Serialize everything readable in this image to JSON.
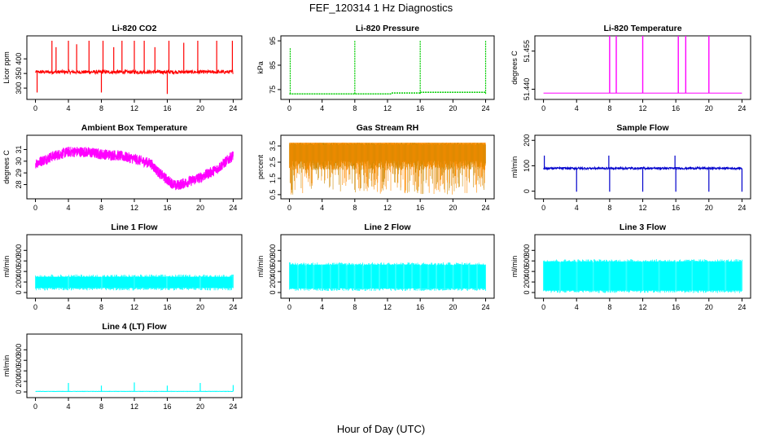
{
  "figure": {
    "title": "FEF_120314  1 Hz Diagnostics",
    "xlabel": "Hour of Day (UTC)"
  },
  "chart_data": [
    {
      "id": "co2",
      "type": "line",
      "title": "Li-820 CO2",
      "ylabel": "Licor ppm",
      "color": "#ff0000",
      "xlim": [
        0,
        24
      ],
      "xticks": [
        0,
        4,
        8,
        12,
        16,
        20,
        24
      ],
      "ylim": [
        270,
        470
      ],
      "yticks": [
        300,
        350,
        400
      ],
      "pattern": "baseline_spikes",
      "baseline": 355,
      "noise": 6,
      "spikes": [
        [
          0.2,
          285
        ],
        [
          2.0,
          462
        ],
        [
          2.5,
          440
        ],
        [
          4.0,
          462
        ],
        [
          5.0,
          450
        ],
        [
          6.5,
          462
        ],
        [
          8.0,
          285
        ],
        [
          8.2,
          462
        ],
        [
          9.5,
          440
        ],
        [
          10.5,
          462
        ],
        [
          12.0,
          462
        ],
        [
          13.2,
          462
        ],
        [
          14.5,
          440
        ],
        [
          16.0,
          280
        ],
        [
          16.2,
          462
        ],
        [
          18.0,
          455
        ],
        [
          19.7,
          462
        ],
        [
          22.0,
          462
        ],
        [
          23.9,
          462
        ]
      ]
    },
    {
      "id": "pressure",
      "type": "line",
      "title": "Li-820 Pressure",
      "ylabel": "kPa",
      "color": "#00cc00",
      "xlim": [
        0,
        24
      ],
      "xticks": [
        0,
        4,
        8,
        12,
        16,
        20,
        24
      ],
      "ylim": [
        72,
        96
      ],
      "yticks": [
        75,
        85,
        95
      ],
      "pattern": "step_spikes",
      "segments": [
        [
          0,
          12.5,
          73.2
        ],
        [
          12.5,
          16,
          73.6
        ],
        [
          16,
          24,
          73.9
        ]
      ],
      "spikes": [
        [
          0.1,
          92
        ],
        [
          8.0,
          95
        ],
        [
          16.0,
          95
        ],
        [
          24.0,
          95
        ]
      ]
    },
    {
      "id": "temperature",
      "type": "line",
      "title": "Li-820 Temperature",
      "ylabel": "degrees C",
      "color": "#ff00ff",
      "xlim": [
        0,
        24
      ],
      "xticks": [
        0,
        4,
        8,
        12,
        16,
        20,
        24
      ],
      "ylim": [
        51.437,
        51.46
      ],
      "yticks": [
        51.44,
        51.455
      ],
      "ytick_labels": [
        "51.440",
        "51.455"
      ],
      "pattern": "flat_spikes",
      "baseline": 51.4385,
      "spikes": [
        [
          8.0,
          51.46
        ],
        [
          8.8,
          51.46
        ],
        [
          12.0,
          51.46
        ],
        [
          16.3,
          51.46
        ],
        [
          17.2,
          51.46
        ],
        [
          20.0,
          51.46
        ]
      ]
    },
    {
      "id": "ambient",
      "type": "line",
      "title": "Ambient Box Temperature",
      "ylabel": "degrees C",
      "color": "#ff00ff",
      "xlim": [
        0,
        24
      ],
      "xticks": [
        0,
        4,
        8,
        12,
        16,
        20,
        24
      ],
      "ylim": [
        27,
        32
      ],
      "yticks": [
        28,
        29,
        30,
        31
      ],
      "pattern": "smooth_band",
      "band": 0.7,
      "x": [
        0,
        2,
        4,
        6,
        8,
        10,
        12,
        14,
        15,
        16,
        17,
        18,
        20,
        22,
        23,
        24
      ],
      "y": [
        29.8,
        30.4,
        30.8,
        30.8,
        30.6,
        30.5,
        30.2,
        29.8,
        29.0,
        28.4,
        27.9,
        28.1,
        28.6,
        29.3,
        29.9,
        30.5
      ]
    },
    {
      "id": "rh",
      "type": "line",
      "title": "Gas Stream RH",
      "ylabel": "percent",
      "color": "#ff8c00",
      "color2": "#cc8800",
      "xlim": [
        0,
        24
      ],
      "xticks": [
        0,
        4,
        8,
        12,
        16,
        20,
        24
      ],
      "ylim": [
        0.4,
        4.0
      ],
      "yticks": [
        0.5,
        1.5,
        2.5,
        3.5
      ],
      "pattern": "noise_band",
      "band_low": 2.6,
      "band_high": 3.7,
      "dip_min": 0.5
    },
    {
      "id": "sample",
      "type": "line",
      "title": "Sample Flow",
      "ylabel": "ml/min",
      "color": "#0000cc",
      "xlim": [
        0,
        24
      ],
      "xticks": [
        0,
        4,
        8,
        12,
        16,
        20,
        24
      ],
      "ylim": [
        -20,
        210
      ],
      "yticks": [
        0,
        100,
        200
      ],
      "pattern": "baseline_spikes",
      "baseline": 90,
      "noise": 4,
      "spikes": [
        [
          0.1,
          140
        ],
        [
          4.0,
          -2
        ],
        [
          8.0,
          -2
        ],
        [
          7.9,
          140
        ],
        [
          12.0,
          -2
        ],
        [
          16.0,
          -2
        ],
        [
          15.9,
          140
        ],
        [
          20.0,
          -2
        ],
        [
          24.0,
          -2
        ]
      ]
    },
    {
      "id": "line1",
      "type": "line",
      "title": "Line 1 Flow",
      "ylabel": "ml/min",
      "color": "#00ffff",
      "xlim": [
        0,
        24
      ],
      "xticks": [
        0,
        4,
        8,
        12,
        16,
        20,
        24
      ],
      "ylim": [
        -60,
        1050
      ],
      "yticks": [
        0,
        200,
        400,
        600,
        800
      ],
      "pattern": "block_band",
      "low": 90,
      "high": 300,
      "gaps": [
        4,
        8,
        12,
        16,
        20
      ]
    },
    {
      "id": "line2",
      "type": "line",
      "title": "Line 2 Flow",
      "ylabel": "ml/min",
      "color": "#00ffff",
      "xlim": [
        0,
        24
      ],
      "xticks": [
        0,
        4,
        8,
        12,
        16,
        20,
        24
      ],
      "ylim": [
        -60,
        1050
      ],
      "yticks": [
        0,
        200,
        400,
        600,
        800
      ],
      "pattern": "block_band",
      "low": 80,
      "high": 530,
      "gaps": [
        1,
        2,
        3,
        4,
        5,
        6,
        7,
        8,
        9,
        10,
        11,
        12,
        13,
        14,
        15,
        16,
        17,
        18,
        19,
        20,
        21,
        22,
        23
      ]
    },
    {
      "id": "line3",
      "type": "line",
      "title": "Line 3 Flow",
      "ylabel": "ml/min",
      "color": "#00ffff",
      "xlim": [
        0,
        24
      ],
      "xticks": [
        0,
        4,
        8,
        12,
        16,
        20,
        24
      ],
      "ylim": [
        -60,
        1050
      ],
      "yticks": [
        0,
        200,
        400,
        600,
        800
      ],
      "pattern": "block_band",
      "low": 40,
      "high": 590,
      "gaps": [
        2,
        4,
        6,
        8,
        10,
        12,
        14,
        16,
        18,
        20,
        22
      ]
    },
    {
      "id": "line4",
      "type": "line",
      "title": "Line 4 (LT) Flow",
      "ylabel": "ml/min",
      "color": "#00ffff",
      "xlim": [
        0,
        24
      ],
      "xticks": [
        0,
        4,
        8,
        12,
        16,
        20,
        24
      ],
      "ylim": [
        -60,
        1050
      ],
      "yticks": [
        0,
        200,
        400,
        600,
        800
      ],
      "pattern": "baseline_spikes",
      "baseline": 10,
      "noise": 3,
      "spikes": [
        [
          4.0,
          170
        ],
        [
          8.0,
          120
        ],
        [
          12.0,
          180
        ],
        [
          16.0,
          120
        ],
        [
          20.0,
          170
        ],
        [
          24.0,
          130
        ]
      ]
    }
  ]
}
